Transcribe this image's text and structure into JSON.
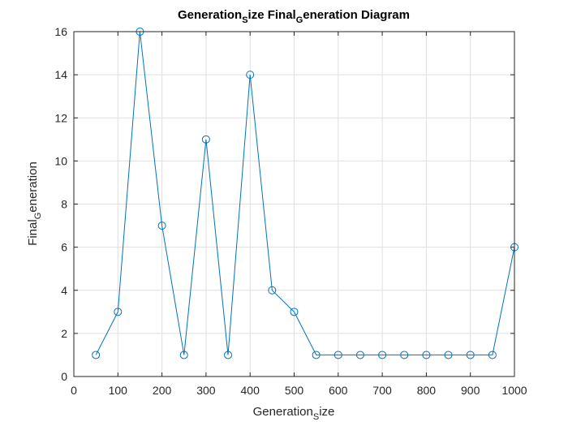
{
  "chart_data": {
    "type": "line",
    "title": {
      "parts": [
        "Generation",
        "S",
        "ize Final",
        "G",
        "eneration Diagram"
      ]
    },
    "xlabel": {
      "parts": [
        "Generation",
        "S",
        "ize"
      ]
    },
    "ylabel": {
      "parts": [
        "Final",
        "G",
        "eneration"
      ]
    },
    "xlim": [
      0,
      1000
    ],
    "ylim": [
      0,
      16
    ],
    "xticks": [
      0,
      100,
      200,
      300,
      400,
      500,
      600,
      700,
      800,
      900,
      1000
    ],
    "yticks": [
      0,
      2,
      4,
      6,
      8,
      10,
      12,
      14,
      16
    ],
    "grid": true,
    "marker": "circle",
    "color": "#0072bd",
    "series": [
      {
        "x": [
          50,
          100,
          150,
          200,
          250,
          300,
          350,
          400,
          450,
          500,
          550,
          600,
          650,
          700,
          750,
          800,
          850,
          900,
          950,
          1000
        ],
        "y": [
          1,
          3,
          16,
          7,
          1,
          11,
          1,
          14,
          4,
          3,
          1,
          1,
          1,
          1,
          1,
          1,
          1,
          1,
          1,
          6
        ]
      }
    ]
  }
}
